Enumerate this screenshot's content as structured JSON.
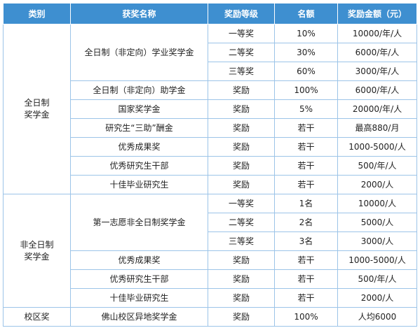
{
  "header": {
    "category": "类别",
    "award_name": "获奖名称",
    "level": "奖励等级",
    "quota": "名额",
    "amount": "奖励金额（元）"
  },
  "sections": [
    {
      "category": "全日制\n奖学金",
      "awards": [
        {
          "name": "全日制（非定向）学业奖学金",
          "rows": [
            {
              "level": "一等奖",
              "quota": "10%",
              "amount": "10000/年/人"
            },
            {
              "level": "二等奖",
              "quota": "30%",
              "amount": "6000/年/人"
            },
            {
              "level": "三等奖",
              "quota": "60%",
              "amount": "3000/年/人"
            }
          ]
        },
        {
          "name": "全日制（非定向）助学金",
          "rows": [
            {
              "level": "奖励",
              "quota": "100%",
              "amount": "6000/年/人"
            }
          ]
        },
        {
          "name": "国家奖学金",
          "rows": [
            {
              "level": "奖励",
              "quota": "5%",
              "amount": "20000/年/人"
            }
          ]
        },
        {
          "name": "研究生“三助”酬金",
          "rows": [
            {
              "level": "奖励",
              "quota": "若干",
              "amount": "最高880/月"
            }
          ]
        },
        {
          "name": "优秀成果奖",
          "rows": [
            {
              "level": "奖励",
              "quota": "若干",
              "amount": "1000-5000/人"
            }
          ]
        },
        {
          "name": "优秀研究生干部",
          "rows": [
            {
              "level": "奖励",
              "quota": "若干",
              "amount": "500/年/人"
            }
          ]
        },
        {
          "name": "十佳毕业研究生",
          "rows": [
            {
              "level": "奖励",
              "quota": "若干",
              "amount": "2000/人"
            }
          ]
        }
      ]
    },
    {
      "category": "非全日制\n奖学金",
      "awards": [
        {
          "name": "第一志愿非全日制奖学金",
          "rows": [
            {
              "level": "一等奖",
              "quota": "1名",
              "amount": "10000/人"
            },
            {
              "level": "二等奖",
              "quota": "2名",
              "amount": "5000/人"
            },
            {
              "level": "三等奖",
              "quota": "3名",
              "amount": "3000/人"
            }
          ]
        },
        {
          "name": "优秀成果奖",
          "rows": [
            {
              "level": "奖励",
              "quota": "若干",
              "amount": "1000-5000/人"
            }
          ]
        },
        {
          "name": "优秀研究生干部",
          "rows": [
            {
              "level": "奖励",
              "quota": "若干",
              "amount": "500/年/人"
            }
          ]
        },
        {
          "name": "十佳毕业研究生",
          "rows": [
            {
              "level": "奖励",
              "quota": "若干",
              "amount": "2000/人"
            }
          ]
        }
      ]
    },
    {
      "category": "校区奖",
      "awards": [
        {
          "name": "佛山校区异地奖学金",
          "rows": [
            {
              "level": "奖励",
              "quota": "100%",
              "amount": "人均6000"
            }
          ]
        }
      ]
    }
  ]
}
